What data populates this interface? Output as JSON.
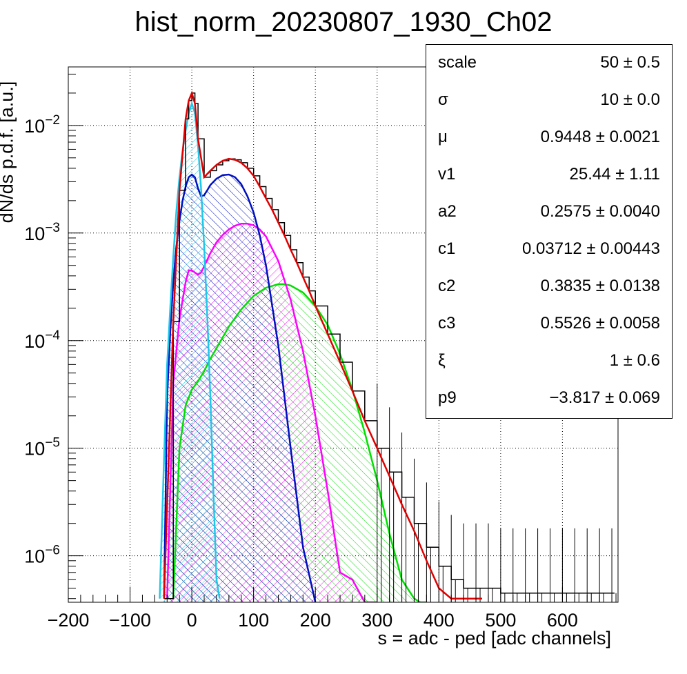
{
  "title": "hist_norm_20230807_1930_Ch02",
  "colors": {
    "data": "#000000",
    "total": "#e00000",
    "pedestal": "#20c8e8",
    "pe1": "#0010c0",
    "pe2": "#ff00ff",
    "pe3": "#00e000"
  },
  "stats_box": {
    "rows": [
      {
        "name": "scale",
        "value": "50 ± 0.5"
      },
      {
        "name": "σ",
        "value": "10 ± 0.0"
      },
      {
        "name": "μ",
        "value": "0.9448 ± 0.0021"
      },
      {
        "name": "v1",
        "value": "25.44 ± 1.11"
      },
      {
        "name": "a2",
        "value": "0.2575 ± 0.0040"
      },
      {
        "name": "c1",
        "value": "0.03712 ± 0.00443"
      },
      {
        "name": "c2",
        "value": "0.3835 ± 0.0138"
      },
      {
        "name": "c3",
        "value": "0.5526 ± 0.0058"
      },
      {
        "name": "ξ",
        "value": "1 ± 0.6"
      },
      {
        "name": "p9",
        "value": "−3.817 ± 0.069"
      }
    ]
  },
  "chart_data": {
    "type": "line",
    "title": "hist_norm_20230807_1930_Ch02",
    "xlabel": "s = adc - ped [adc channels]",
    "ylabel": "dN/ds p.d.f. [a.u.]",
    "xlim": [
      -200,
      690
    ],
    "ylim": [
      3.7e-07,
      0.035
    ],
    "yscale": "log",
    "grid": true,
    "x_ticks": [
      -200,
      -100,
      0,
      100,
      200,
      300,
      400,
      500,
      600
    ],
    "x_tick_labels": [
      "−200",
      "−100",
      "0",
      "100",
      "200",
      "300",
      "400",
      "500",
      "600"
    ],
    "y_ticks": [
      {
        "value": 1e-06,
        "label_base": "10",
        "label_exp": "−6"
      },
      {
        "value": 1e-05,
        "label_base": "10",
        "label_exp": "−5"
      },
      {
        "value": 0.0001,
        "label_base": "10",
        "label_exp": "−4"
      },
      {
        "value": 0.001,
        "label_base": "10",
        "label_exp": "−3"
      },
      {
        "value": 0.01,
        "label_base": "10",
        "label_exp": "−2"
      }
    ],
    "series": [
      {
        "key": "data",
        "style": "histogram",
        "x": [
          -45,
          -30,
          -20,
          -10,
          -5,
          0,
          5,
          10,
          20,
          30,
          40,
          50,
          60,
          70,
          80,
          90,
          100,
          110,
          120,
          130,
          140,
          150,
          160,
          170,
          180,
          190,
          200,
          220,
          240,
          260,
          280,
          300,
          320,
          340,
          360,
          380,
          400,
          420,
          440,
          460,
          480,
          500,
          520,
          540,
          560,
          580,
          600,
          620,
          640,
          660,
          680
        ],
        "values": [
          4e-07,
          0.00015,
          0.0025,
          0.0115,
          0.017,
          0.02,
          0.016,
          0.0075,
          0.0033,
          0.0038,
          0.0043,
          0.0047,
          0.0049,
          0.0048,
          0.0045,
          0.004,
          0.0034,
          0.0027,
          0.0021,
          0.00165,
          0.00125,
          0.00095,
          0.0007,
          0.00053,
          0.00039,
          0.00029,
          0.00021,
          0.000115,
          6.3e-05,
          3.4e-05,
          1.8e-05,
          1e-05,
          6e-06,
          3.5e-06,
          2e-06,
          1.2e-06,
          8e-07,
          6e-07,
          5e-07,
          5e-07,
          5e-07,
          4.5e-07,
          4.5e-07,
          4.5e-07,
          4.5e-07,
          4.5e-07,
          4.5e-07,
          4.5e-07,
          4.5e-07,
          4.5e-07,
          4.5e-07
        ]
      },
      {
        "key": "total",
        "style": "line",
        "x": [
          -45,
          -30,
          -20,
          -10,
          -5,
          0,
          5,
          10,
          20,
          30,
          40,
          50,
          60,
          70,
          80,
          90,
          100,
          110,
          120,
          130,
          140,
          150,
          160,
          170,
          180,
          190,
          200,
          220,
          240,
          260,
          280,
          300,
          320,
          340,
          360,
          380,
          400,
          420,
          440,
          460,
          470
        ],
        "values": [
          4e-07,
          0.00015,
          0.0025,
          0.0115,
          0.017,
          0.02,
          0.016,
          0.0075,
          0.0033,
          0.0038,
          0.0043,
          0.0047,
          0.0049,
          0.0048,
          0.0045,
          0.004,
          0.0034,
          0.0027,
          0.0021,
          0.00165,
          0.00125,
          0.00095,
          0.0007,
          0.00053,
          0.00039,
          0.00029,
          0.00021,
          0.000115,
          6.3e-05,
          3.4e-05,
          1.8e-05,
          1e-05,
          5.5e-06,
          3e-06,
          1.7e-06,
          9e-07,
          5e-07,
          4e-07,
          4e-07,
          4e-07,
          4e-07
        ]
      },
      {
        "key": "pedestal",
        "style": "filled",
        "x": [
          -52,
          -45,
          -40,
          -35,
          -30,
          -25,
          -20,
          -15,
          -10,
          -5,
          0,
          5,
          10,
          15,
          20,
          25,
          30,
          35,
          40,
          45
        ],
        "values": [
          4e-07,
          8e-06,
          6e-05,
          0.0002,
          0.0006,
          0.0016,
          0.0033,
          0.0058,
          0.009,
          0.013,
          0.016,
          0.013,
          0.0065,
          0.0026,
          0.00075,
          0.00017,
          3e-05,
          4e-06,
          6e-07,
          4e-07
        ]
      },
      {
        "key": "pe1",
        "style": "filled",
        "x": [
          -45,
          -40,
          -35,
          -30,
          -25,
          -20,
          -15,
          -10,
          -5,
          0,
          5,
          10,
          15,
          20,
          25,
          30,
          40,
          50,
          60,
          70,
          80,
          90,
          100,
          110,
          120,
          140,
          160,
          180,
          200
        ],
        "values": [
          4e-07,
          3e-05,
          0.00012,
          0.00035,
          0.00075,
          0.0013,
          0.002,
          0.0027,
          0.0033,
          0.0035,
          0.0033,
          0.0026,
          0.0022,
          0.00225,
          0.0025,
          0.0028,
          0.0032,
          0.00345,
          0.0035,
          0.0033,
          0.00285,
          0.0022,
          0.00155,
          0.00095,
          0.0005,
          9e-05,
          1e-05,
          1.2e-06,
          3e-07
        ]
      },
      {
        "key": "pe2",
        "style": "filled",
        "x": [
          -40,
          -30,
          -20,
          -10,
          -5,
          0,
          5,
          10,
          15,
          20,
          30,
          40,
          50,
          60,
          70,
          80,
          90,
          100,
          110,
          120,
          140,
          160,
          180,
          200,
          220,
          240,
          260,
          280,
          300
        ],
        "values": [
          4e-07,
          4e-05,
          0.00016,
          0.00035,
          0.00045,
          0.00045,
          0.00043,
          0.00041,
          0.00043,
          0.00049,
          0.00065,
          0.00082,
          0.00096,
          0.00108,
          0.00117,
          0.00122,
          0.00122,
          0.00118,
          0.00108,
          0.00093,
          0.00055,
          0.00024,
          8e-05,
          2e-05,
          4e-06,
          7e-07,
          6e-07,
          3e-07,
          3e-07
        ]
      },
      {
        "key": "pe3",
        "style": "filled",
        "x": [
          -30,
          -25,
          -20,
          -10,
          0,
          10,
          20,
          30,
          40,
          60,
          80,
          100,
          120,
          140,
          150,
          160,
          180,
          200,
          220,
          240,
          260,
          280,
          300,
          320,
          340,
          360,
          370,
          380
        ],
        "values": [
          4e-07,
          2e-06,
          1e-05,
          2.5e-05,
          3.5e-05,
          4.2e-05,
          5.2e-05,
          6.8e-05,
          8.5e-05,
          0.000135,
          0.000195,
          0.00026,
          0.00031,
          0.000335,
          0.000335,
          0.000325,
          0.00028,
          0.00021,
          0.00014,
          7.5e-05,
          3.5e-05,
          1.4e-05,
          5e-06,
          1.6e-06,
          6e-07,
          4e-07,
          3e-07,
          3e-07
        ]
      }
    ]
  }
}
